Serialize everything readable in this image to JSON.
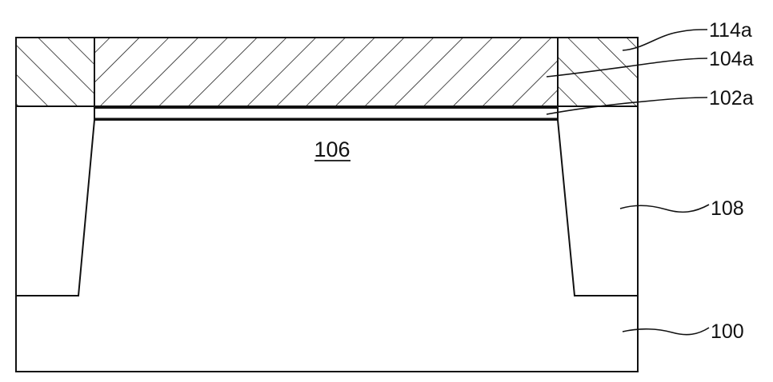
{
  "labels": {
    "layer_114a": "114a",
    "layer_104a": "104a",
    "layer_102a": "102a",
    "region_106": "106",
    "region_108": "108",
    "substrate_100": "100"
  }
}
